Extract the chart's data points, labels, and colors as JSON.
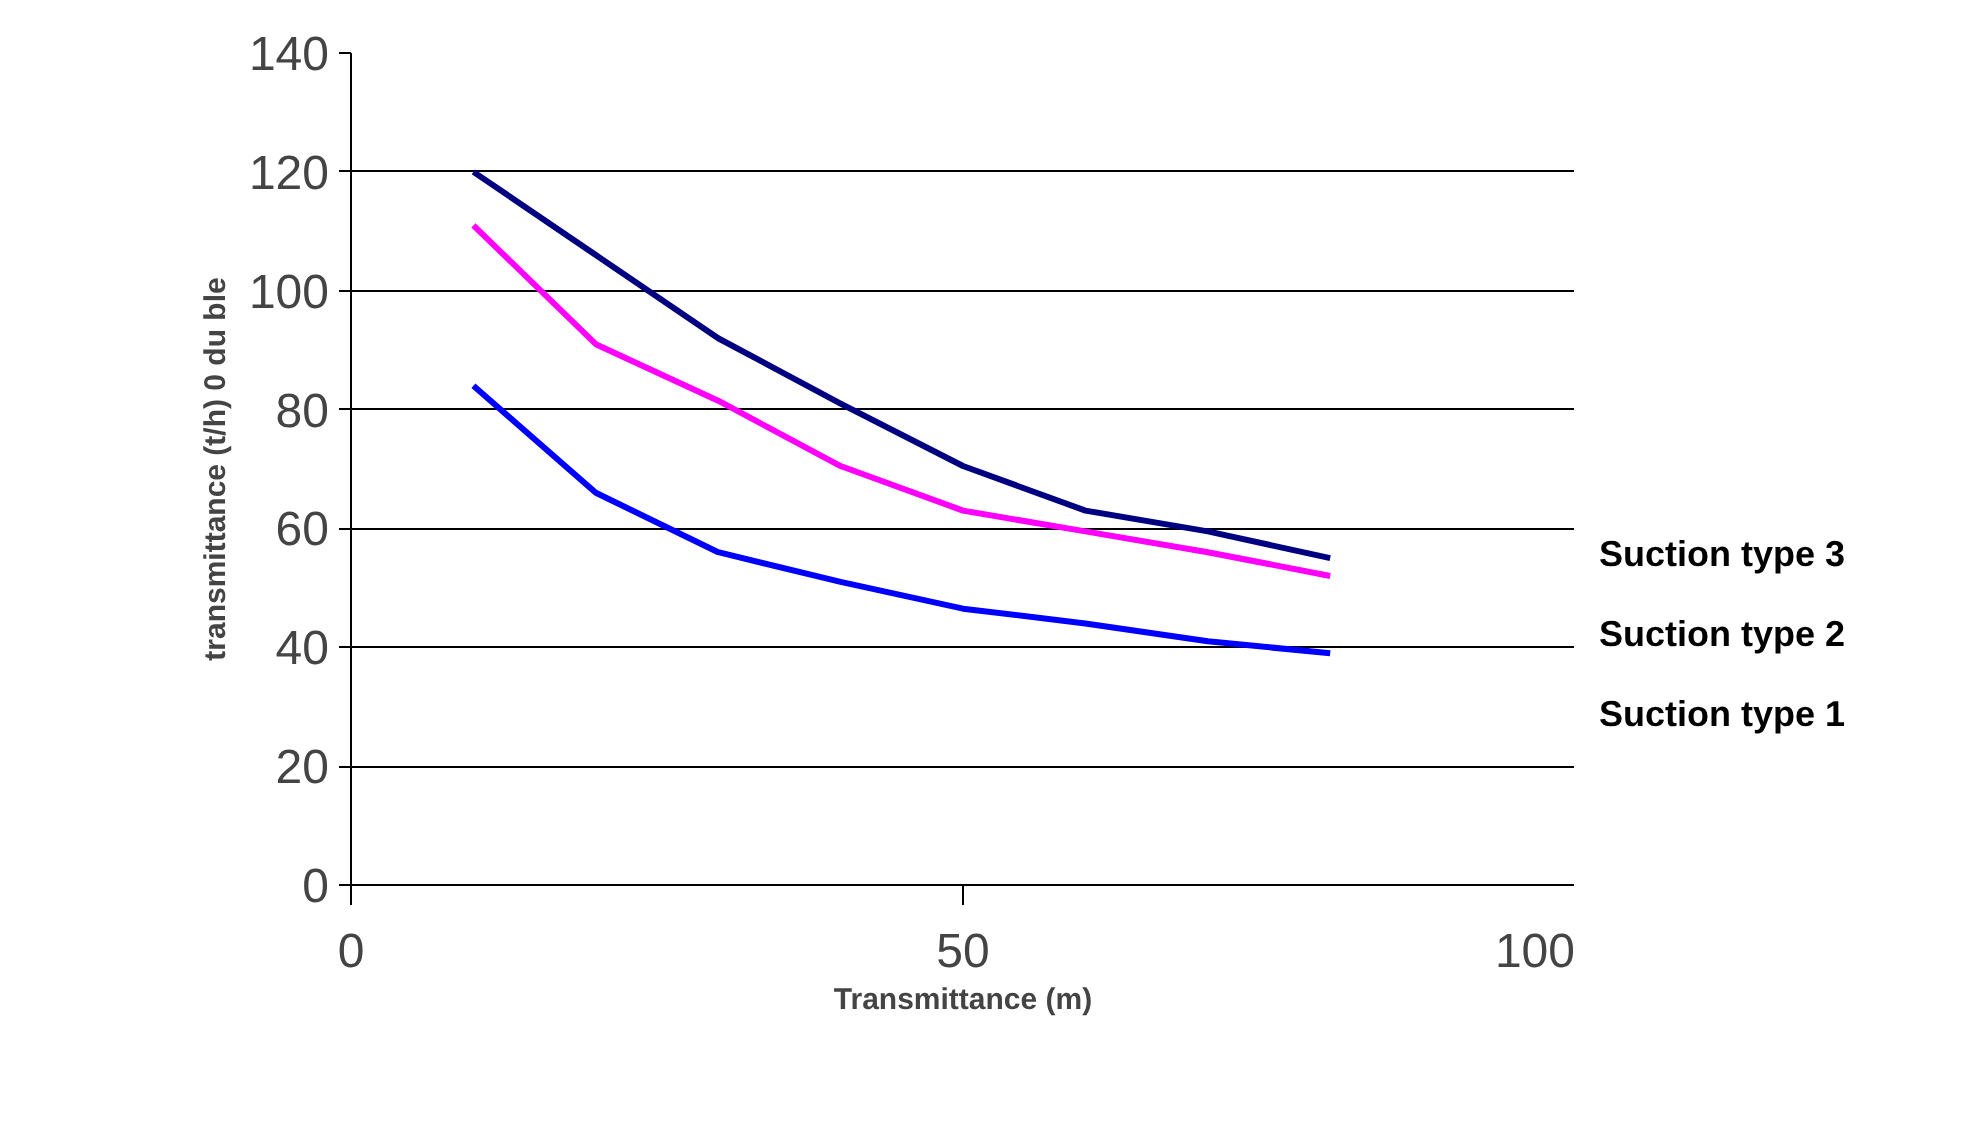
{
  "chart_data": {
    "type": "line",
    "xlabel": "Transmittance (m)",
    "ylabel": "transmittance (t/h) 0 du ble",
    "x": [
      10,
      20,
      30,
      40,
      50,
      60,
      70,
      80
    ],
    "series": [
      {
        "name": "Suction type 3",
        "color": "#000080",
        "values": [
          120,
          106,
          92,
          81,
          70.5,
          63,
          59.5,
          55
        ]
      },
      {
        "name": "Suction type 2",
        "color": "#ff00ff",
        "values": [
          111,
          91,
          81.5,
          70.5,
          63,
          59.5,
          56,
          52
        ]
      },
      {
        "name": "Suction type 1",
        "color": "#0000ff",
        "values": [
          84,
          66,
          56,
          51,
          46.5,
          44,
          41,
          39
        ]
      }
    ],
    "xlim": [
      0,
      100
    ],
    "xticks": [
      0,
      50,
      100
    ],
    "ylim": [
      0,
      140
    ],
    "yticks": [
      0,
      20,
      40,
      60,
      80,
      100,
      120,
      140
    ],
    "grid": "y",
    "line_style": "solid"
  }
}
